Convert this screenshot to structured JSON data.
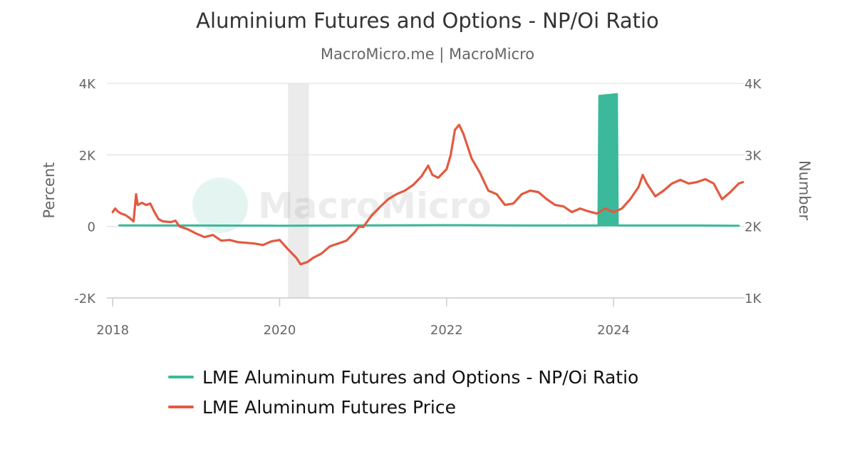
{
  "title": "Aluminium Futures and Options - NP/Oi Ratio",
  "subtitle": "MacroMicro.me | MacroMicro",
  "watermark": "MacroMicro",
  "colors": {
    "ratio": "#3bb99a",
    "price": "#e25a40",
    "grid": "#e3e3e3",
    "axis_text": "#666666",
    "recession_band": "#ebebeb"
  },
  "chart_data": {
    "type": "line",
    "x_axis": {
      "ticks": [
        "2018",
        "2020",
        "2022",
        "2024"
      ],
      "range": [
        2017.93,
        2025.57
      ]
    },
    "y_left": {
      "label": "Percent",
      "ticks": [
        "4K",
        "2K",
        "0",
        "-2K"
      ],
      "range": [
        -2000,
        4000
      ]
    },
    "y_right": {
      "label": "Number",
      "ticks": [
        "4K",
        "3K",
        "2K",
        "1K"
      ],
      "range": [
        1000,
        4000
      ]
    },
    "shaded_periods": [
      {
        "start": 2020.1,
        "end": 2020.35
      }
    ],
    "grid": true,
    "legend_position": "bottom",
    "series": [
      {
        "name": "LME Aluminum Futures and Options - NP/Oi Ratio",
        "axis": "left",
        "points": [
          [
            2018.08,
            30
          ],
          [
            2019.0,
            25
          ],
          [
            2020.0,
            20
          ],
          [
            2021.0,
            30
          ],
          [
            2022.0,
            35
          ],
          [
            2023.0,
            25
          ],
          [
            2023.82,
            25
          ],
          [
            2023.83,
            3650
          ],
          [
            2024.04,
            3700
          ],
          [
            2024.05,
            25
          ],
          [
            2025.0,
            25
          ],
          [
            2025.5,
            20
          ]
        ]
      },
      {
        "name": "LME Aluminum Futures Price",
        "axis": "right",
        "points": [
          [
            2018.0,
            2200
          ],
          [
            2018.03,
            2250
          ],
          [
            2018.06,
            2210
          ],
          [
            2018.1,
            2180
          ],
          [
            2018.15,
            2160
          ],
          [
            2018.2,
            2120
          ],
          [
            2018.25,
            2070
          ],
          [
            2018.28,
            2450
          ],
          [
            2018.3,
            2300
          ],
          [
            2018.35,
            2330
          ],
          [
            2018.4,
            2300
          ],
          [
            2018.45,
            2320
          ],
          [
            2018.5,
            2200
          ],
          [
            2018.55,
            2100
          ],
          [
            2018.6,
            2070
          ],
          [
            2018.7,
            2060
          ],
          [
            2018.75,
            2080
          ],
          [
            2018.8,
            2000
          ],
          [
            2018.9,
            1960
          ],
          [
            2019.0,
            1900
          ],
          [
            2019.1,
            1850
          ],
          [
            2019.2,
            1880
          ],
          [
            2019.3,
            1800
          ],
          [
            2019.4,
            1810
          ],
          [
            2019.5,
            1780
          ],
          [
            2019.6,
            1770
          ],
          [
            2019.7,
            1760
          ],
          [
            2019.8,
            1740
          ],
          [
            2019.9,
            1790
          ],
          [
            2020.0,
            1810
          ],
          [
            2020.1,
            1680
          ],
          [
            2020.2,
            1560
          ],
          [
            2020.25,
            1470
          ],
          [
            2020.33,
            1500
          ],
          [
            2020.4,
            1560
          ],
          [
            2020.5,
            1620
          ],
          [
            2020.6,
            1720
          ],
          [
            2020.7,
            1760
          ],
          [
            2020.8,
            1800
          ],
          [
            2020.9,
            1920
          ],
          [
            2020.95,
            2000
          ],
          [
            2021.0,
            1990
          ],
          [
            2021.1,
            2150
          ],
          [
            2021.2,
            2270
          ],
          [
            2021.3,
            2380
          ],
          [
            2021.4,
            2450
          ],
          [
            2021.5,
            2500
          ],
          [
            2021.6,
            2580
          ],
          [
            2021.7,
            2700
          ],
          [
            2021.78,
            2850
          ],
          [
            2021.83,
            2720
          ],
          [
            2021.9,
            2680
          ],
          [
            2022.0,
            2800
          ],
          [
            2022.05,
            3000
          ],
          [
            2022.1,
            3350
          ],
          [
            2022.15,
            3420
          ],
          [
            2022.2,
            3300
          ],
          [
            2022.3,
            2950
          ],
          [
            2022.4,
            2750
          ],
          [
            2022.5,
            2500
          ],
          [
            2022.6,
            2450
          ],
          [
            2022.7,
            2300
          ],
          [
            2022.8,
            2320
          ],
          [
            2022.9,
            2450
          ],
          [
            2023.0,
            2500
          ],
          [
            2023.1,
            2480
          ],
          [
            2023.2,
            2380
          ],
          [
            2023.3,
            2300
          ],
          [
            2023.4,
            2280
          ],
          [
            2023.5,
            2200
          ],
          [
            2023.6,
            2250
          ],
          [
            2023.7,
            2210
          ],
          [
            2023.8,
            2180
          ],
          [
            2023.9,
            2250
          ],
          [
            2024.0,
            2200
          ],
          [
            2024.1,
            2250
          ],
          [
            2024.2,
            2380
          ],
          [
            2024.3,
            2550
          ],
          [
            2024.35,
            2720
          ],
          [
            2024.4,
            2600
          ],
          [
            2024.5,
            2420
          ],
          [
            2024.6,
            2500
          ],
          [
            2024.7,
            2600
          ],
          [
            2024.8,
            2650
          ],
          [
            2024.9,
            2600
          ],
          [
            2025.0,
            2620
          ],
          [
            2025.1,
            2660
          ],
          [
            2025.2,
            2600
          ],
          [
            2025.3,
            2380
          ],
          [
            2025.4,
            2480
          ],
          [
            2025.5,
            2600
          ],
          [
            2025.55,
            2620
          ]
        ]
      }
    ]
  },
  "legend": [
    {
      "label": "LME Aluminum Futures and Options - NP/Oi Ratio"
    },
    {
      "label": "LME Aluminum Futures Price"
    }
  ]
}
